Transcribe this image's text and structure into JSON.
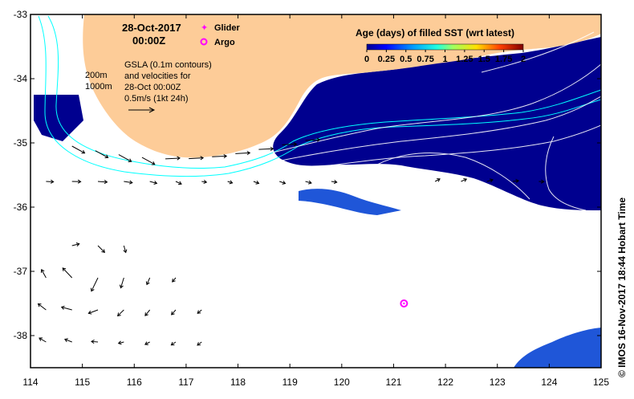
{
  "date_label": "28-Oct-2017",
  "time_label": "00:00Z",
  "legend": {
    "glider": "Glider",
    "argo": "Argo",
    "glider_color": "#ff00ff",
    "argo_color": "#ff00ff"
  },
  "gsla": {
    "line1": "GSLA (0.1m contours)",
    "line2": "and velocities for",
    "line3": "28-Oct 00:00Z",
    "line4": "0.5m/s (1kt 24h)"
  },
  "depth_labels": {
    "d200": "200m",
    "d1000": "1000m"
  },
  "colorbar": {
    "title": "Age (days) of filled SST (wrt latest)",
    "ticks": [
      "0",
      "0.25",
      "0.5",
      "0.75",
      "1",
      "1.25",
      "1.5",
      "1.75",
      "2"
    ],
    "range": [
      0,
      2
    ]
  },
  "axes": {
    "x_ticks": [
      "114",
      "115",
      "116",
      "117",
      "118",
      "119",
      "120",
      "121",
      "122",
      "123",
      "124",
      "125"
    ],
    "y_ticks": [
      "-33",
      "-34",
      "-35",
      "-36",
      "-37",
      "-38"
    ],
    "lon_range": [
      114,
      125
    ],
    "lat_range": [
      -38.5,
      -33
    ]
  },
  "argo_float": {
    "lon": 121.2,
    "lat": -37.5
  },
  "credit": "© IMOS 16-Nov-2017 18:44 Hobart Time",
  "colors": {
    "land": "#fdcc98",
    "sst_recent": "#00008f",
    "sst_mid": "#1f56d8",
    "contour": "#ffffff",
    "isobath": "#00ffff",
    "arrow": "#000000"
  }
}
